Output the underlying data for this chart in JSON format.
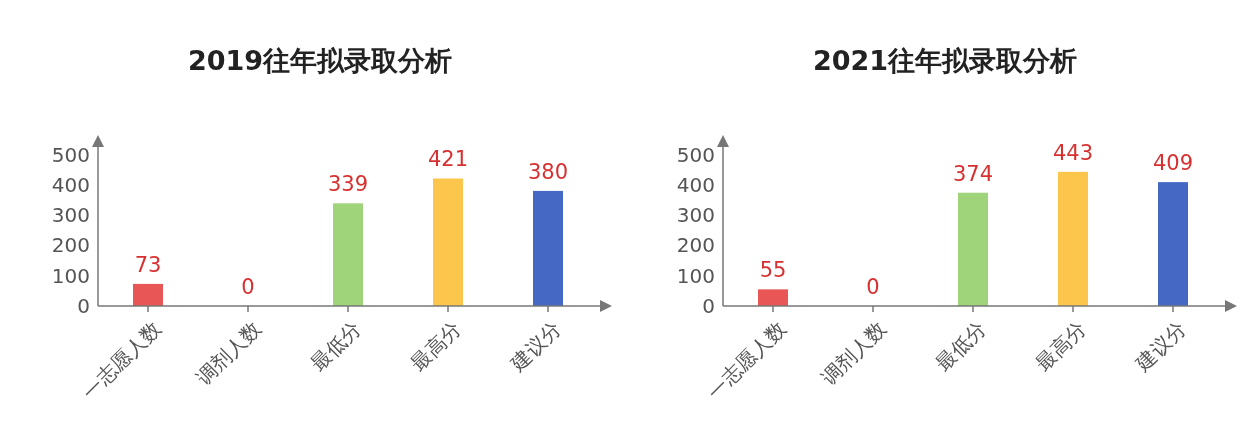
{
  "chart_data": [
    {
      "type": "bar",
      "title": "2019往年拟录取分析",
      "categories": [
        "一志愿人数",
        "调剂人数",
        "最低分",
        "最高分",
        "建议分"
      ],
      "values": [
        73,
        0,
        339,
        421,
        380
      ],
      "colors": [
        "#e85656",
        "#e85656",
        "#9fd47a",
        "#fcc64c",
        "#4568c4"
      ],
      "ylim": [
        0,
        525
      ],
      "yticks": [
        0,
        100,
        200,
        300,
        400,
        500
      ],
      "data_labels": true,
      "grid": false
    },
    {
      "type": "bar",
      "title": "2021往年拟录取分析",
      "categories": [
        "一志愿人数",
        "调剂人数",
        "最低分",
        "最高分",
        "建议分"
      ],
      "values": [
        55,
        0,
        374,
        443,
        409
      ],
      "colors": [
        "#e85656",
        "#e85656",
        "#9fd47a",
        "#fcc64c",
        "#4568c4"
      ],
      "ylim": [
        0,
        525
      ],
      "yticks": [
        0,
        100,
        200,
        300,
        400,
        500
      ],
      "data_labels": true,
      "grid": false
    }
  ]
}
